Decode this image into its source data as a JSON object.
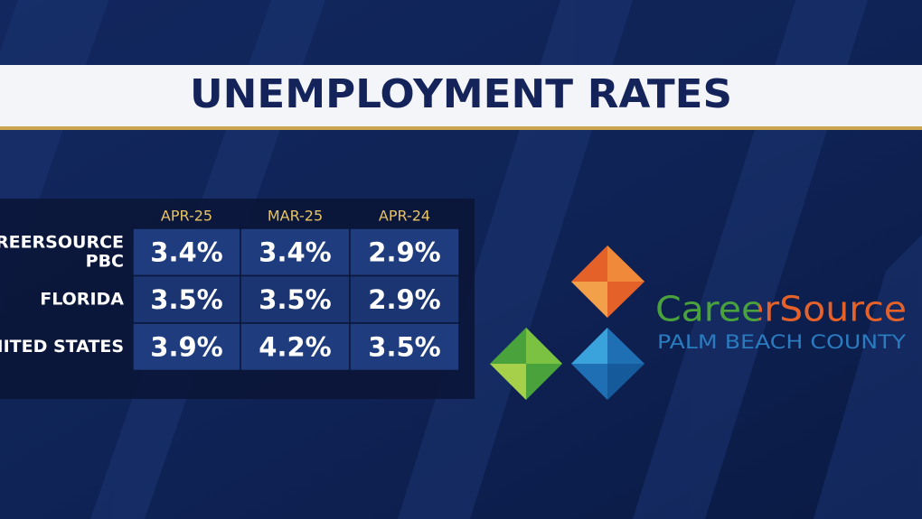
{
  "title": "UNEMPLOYMENT RATES",
  "table": {
    "columns": [
      "APR-25",
      "MAR-25",
      "APR-24"
    ],
    "rows": [
      {
        "label": [
          "CAREERSOURCE",
          "PBC"
        ],
        "cells": [
          "3.4%",
          "3.4%",
          "2.9%"
        ]
      },
      {
        "label": [
          "FLORIDA"
        ],
        "cells": [
          "3.5%",
          "3.5%",
          "2.9%"
        ]
      },
      {
        "label": [
          "UNITED STATES"
        ],
        "cells": [
          "3.9%",
          "4.2%",
          "3.5%"
        ]
      }
    ]
  },
  "logo": {
    "name": "CareerSource",
    "subtitle": "PALM BEACH COUNTY"
  }
}
